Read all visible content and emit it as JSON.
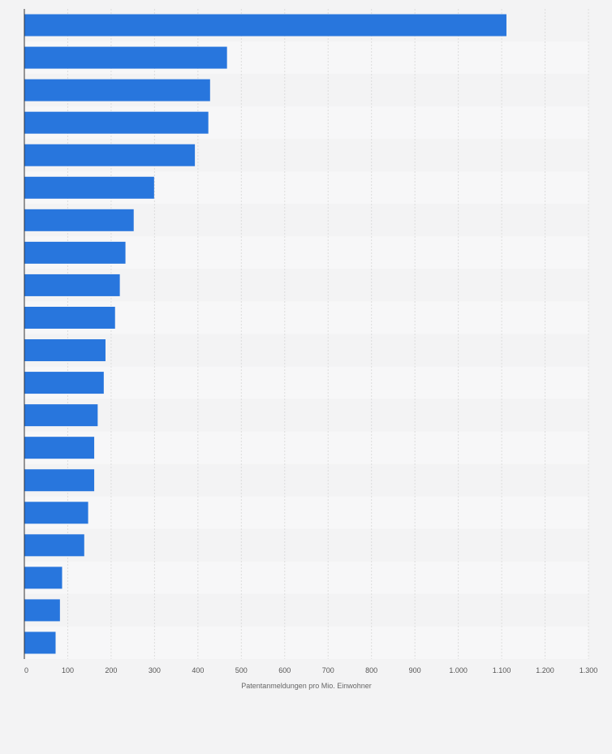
{
  "chart_data": {
    "type": "bar",
    "orientation": "horizontal",
    "title": "",
    "xlabel": "Patentanmeldungen pro Mio. Einwohner",
    "ylabel": "",
    "xlim": [
      0,
      1300
    ],
    "xticks": [
      0,
      100,
      200,
      300,
      400,
      500,
      600,
      700,
      800,
      900,
      1000,
      1100,
      1200,
      1300
    ],
    "xtick_labels": [
      "0",
      "100",
      "200",
      "300",
      "400",
      "500",
      "600",
      "700",
      "800",
      "900",
      "1.000",
      "1.100",
      "1.200",
      "1.300"
    ],
    "categories": [
      "",
      "",
      "",
      "",
      "",
      "",
      "",
      "",
      "",
      "",
      "",
      "",
      "",
      "",
      "",
      "",
      "",
      "",
      "",
      ""
    ],
    "values": [
      1111,
      467,
      428,
      424,
      393,
      299,
      252,
      233,
      220,
      209,
      187,
      183,
      169,
      161,
      161,
      147,
      138,
      87,
      82,
      72
    ],
    "grid": true,
    "bar_color": "#2876dd",
    "band_colors": [
      "#f3f3f4",
      "#f7f7f8"
    ],
    "grid_color": "#dcdcdc",
    "axis_color": "#333333"
  }
}
